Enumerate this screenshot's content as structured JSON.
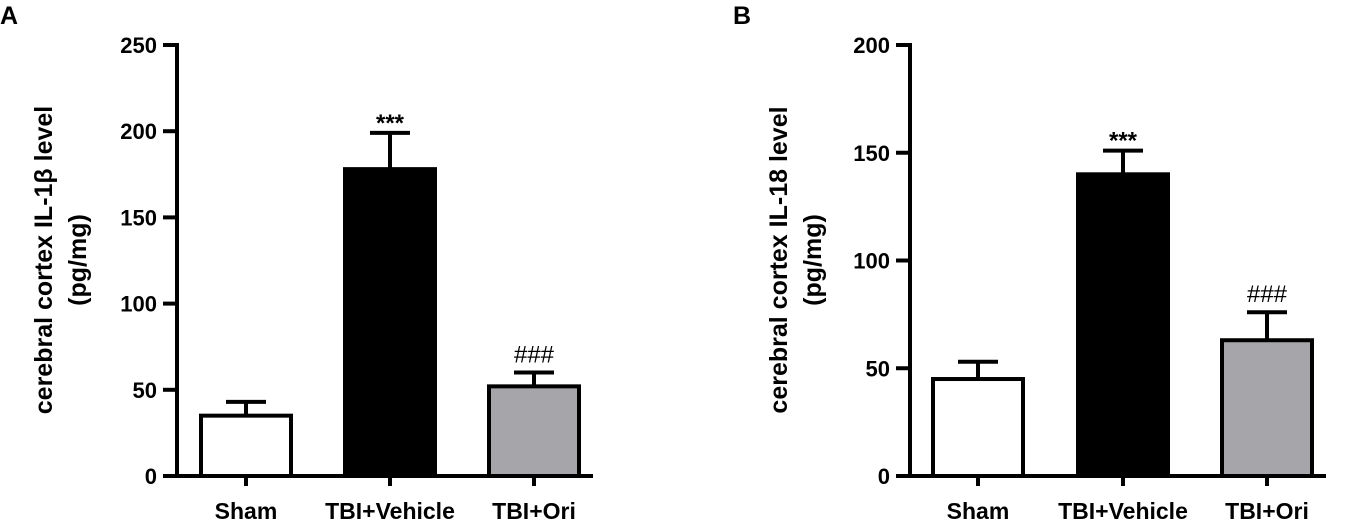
{
  "chart_data": [
    {
      "panel": "A",
      "type": "bar",
      "categories": [
        "Sham",
        "TBI+Vehicle",
        "TBI+Ori"
      ],
      "values": [
        35,
        178,
        52
      ],
      "errors": [
        8,
        21,
        8
      ],
      "bar_colors": [
        "#ffffff",
        "#000000",
        "#a6a6aa"
      ],
      "annotations": [
        "",
        "***",
        "###"
      ],
      "title": "",
      "xlabel": "",
      "ylabel_line1": "cerebral cortex IL-1β level",
      "ylabel_line2": "(pg/mg)",
      "ylim": [
        0,
        250
      ],
      "yticks": [
        0,
        50,
        100,
        150,
        200,
        250
      ],
      "grid": false
    },
    {
      "panel": "B",
      "type": "bar",
      "categories": [
        "Sham",
        "TBI+Vehicle",
        "TBI+Ori"
      ],
      "values": [
        45,
        140,
        63
      ],
      "errors": [
        8,
        11,
        13
      ],
      "bar_colors": [
        "#ffffff",
        "#000000",
        "#a6a6aa"
      ],
      "annotations": [
        "",
        "***",
        "###"
      ],
      "title": "",
      "xlabel": "",
      "ylabel_line1": "cerebral cortex IL-18 level",
      "ylabel_line2": "(pg/mg)",
      "ylim": [
        0,
        200
      ],
      "yticks": [
        0,
        50,
        100,
        150,
        200
      ],
      "grid": false
    }
  ]
}
